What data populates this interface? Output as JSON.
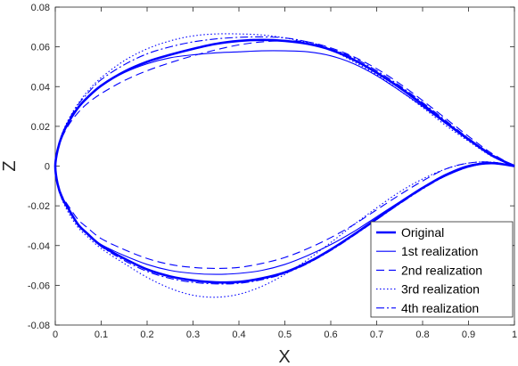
{
  "chart_data": {
    "type": "line",
    "title": "",
    "xlabel": "X",
    "ylabel": "Z",
    "xlim": [
      0,
      1
    ],
    "ylim": [
      -0.08,
      0.08
    ],
    "xticks": [
      "0",
      "0.1",
      "0.2",
      "0.3",
      "0.4",
      "0.5",
      "0.6",
      "0.7",
      "0.8",
      "0.9",
      "1"
    ],
    "yticks": [
      "-0.08",
      "-0.06",
      "-0.04",
      "-0.02",
      "0",
      "0.02",
      "0.04",
      "0.06",
      "0.08"
    ],
    "grid": false,
    "legend_position": "bottom-right",
    "series": [
      {
        "name": "Original",
        "color": "#0000ff",
        "style": "solid-thick",
        "x": [
          1.0,
          0.95,
          0.9,
          0.85,
          0.8,
          0.75,
          0.7,
          0.65,
          0.6,
          0.55,
          0.5,
          0.45,
          0.4,
          0.35,
          0.3,
          0.25,
          0.2,
          0.15,
          0.1,
          0.07,
          0.05,
          0.03,
          0.015,
          0.005,
          0.0,
          0.005,
          0.015,
          0.03,
          0.05,
          0.07,
          0.1,
          0.15,
          0.2,
          0.25,
          0.3,
          0.35,
          0.4,
          0.45,
          0.5,
          0.55,
          0.6,
          0.65,
          0.7,
          0.75,
          0.8,
          0.85,
          0.9,
          0.95,
          1.0
        ],
        "y": [
          0.0,
          0.0055,
          0.0135,
          0.022,
          0.031,
          0.0395,
          0.047,
          0.0535,
          0.0585,
          0.0615,
          0.063,
          0.0635,
          0.063,
          0.0615,
          0.059,
          0.056,
          0.0525,
          0.0475,
          0.0405,
          0.0345,
          0.0295,
          0.0225,
          0.0155,
          0.008,
          0.0,
          -0.009,
          -0.016,
          -0.022,
          -0.0295,
          -0.034,
          -0.04,
          -0.0465,
          -0.052,
          -0.0555,
          -0.0575,
          -0.0585,
          -0.0583,
          -0.0565,
          -0.0535,
          -0.0485,
          -0.042,
          -0.0345,
          -0.0265,
          -0.0185,
          -0.011,
          -0.0045,
          0.0,
          0.0015,
          0.0
        ]
      },
      {
        "name": "1st realization",
        "color": "#0000ff",
        "style": "solid",
        "x": [
          1.0,
          0.95,
          0.9,
          0.85,
          0.8,
          0.75,
          0.7,
          0.65,
          0.6,
          0.55,
          0.5,
          0.45,
          0.4,
          0.35,
          0.3,
          0.25,
          0.2,
          0.15,
          0.1,
          0.07,
          0.05,
          0.03,
          0.015,
          0.005,
          0.0,
          0.005,
          0.015,
          0.03,
          0.05,
          0.07,
          0.1,
          0.15,
          0.2,
          0.25,
          0.3,
          0.35,
          0.4,
          0.45,
          0.5,
          0.55,
          0.6,
          0.65,
          0.7,
          0.75,
          0.8,
          0.85,
          0.9,
          0.95,
          1.0
        ],
        "y": [
          0.0,
          0.0055,
          0.013,
          0.0215,
          0.03,
          0.038,
          0.0455,
          0.0515,
          0.0555,
          0.0575,
          0.058,
          0.058,
          0.0575,
          0.057,
          0.056,
          0.0545,
          0.0515,
          0.047,
          0.0405,
          0.0345,
          0.0295,
          0.0225,
          0.0155,
          0.008,
          0.0,
          -0.009,
          -0.016,
          -0.022,
          -0.0295,
          -0.034,
          -0.0395,
          -0.045,
          -0.0495,
          -0.0525,
          -0.054,
          -0.0545,
          -0.054,
          -0.0525,
          -0.0495,
          -0.045,
          -0.0395,
          -0.033,
          -0.0255,
          -0.018,
          -0.011,
          -0.005,
          -0.0005,
          0.0015,
          0.0
        ]
      },
      {
        "name": "2nd realization",
        "color": "#0000ff",
        "style": "dashed",
        "x": [
          1.0,
          0.95,
          0.9,
          0.85,
          0.8,
          0.75,
          0.7,
          0.65,
          0.6,
          0.55,
          0.5,
          0.45,
          0.4,
          0.35,
          0.3,
          0.25,
          0.2,
          0.15,
          0.1,
          0.07,
          0.05,
          0.03,
          0.015,
          0.005,
          0.0,
          0.005,
          0.015,
          0.03,
          0.05,
          0.07,
          0.1,
          0.15,
          0.2,
          0.25,
          0.3,
          0.35,
          0.4,
          0.45,
          0.5,
          0.55,
          0.6,
          0.65,
          0.7,
          0.75,
          0.8,
          0.85,
          0.9,
          0.95,
          1.0
        ],
        "y": [
          0.0,
          0.0065,
          0.015,
          0.024,
          0.033,
          0.0415,
          0.049,
          0.055,
          0.0595,
          0.0625,
          0.063,
          0.0625,
          0.061,
          0.0585,
          0.0555,
          0.052,
          0.048,
          0.043,
          0.0365,
          0.0315,
          0.027,
          0.021,
          0.0145,
          0.0075,
          0.0,
          -0.0085,
          -0.015,
          -0.0205,
          -0.027,
          -0.031,
          -0.0365,
          -0.042,
          -0.0465,
          -0.0495,
          -0.051,
          -0.0515,
          -0.051,
          -0.049,
          -0.046,
          -0.0415,
          -0.036,
          -0.0295,
          -0.022,
          -0.0145,
          -0.0075,
          -0.0015,
          0.0015,
          0.002,
          0.0
        ]
      },
      {
        "name": "3rd realization",
        "color": "#0000ff",
        "style": "dotted",
        "x": [
          1.0,
          0.95,
          0.9,
          0.85,
          0.8,
          0.75,
          0.7,
          0.65,
          0.6,
          0.55,
          0.5,
          0.45,
          0.4,
          0.35,
          0.3,
          0.25,
          0.2,
          0.15,
          0.1,
          0.07,
          0.05,
          0.03,
          0.015,
          0.005,
          0.0,
          0.005,
          0.015,
          0.03,
          0.05,
          0.07,
          0.1,
          0.15,
          0.2,
          0.25,
          0.3,
          0.35,
          0.4,
          0.45,
          0.5,
          0.55,
          0.6,
          0.65,
          0.7,
          0.75,
          0.8,
          0.85,
          0.9,
          0.95,
          1.0
        ],
        "y": [
          0.0,
          0.005,
          0.0125,
          0.0205,
          0.0295,
          0.038,
          0.046,
          0.0525,
          0.0585,
          0.062,
          0.0645,
          0.066,
          0.0665,
          0.0665,
          0.0655,
          0.063,
          0.059,
          0.053,
          0.0445,
          0.0375,
          0.0315,
          0.024,
          0.0165,
          0.0085,
          0.0,
          -0.0095,
          -0.017,
          -0.024,
          -0.031,
          -0.0355,
          -0.0415,
          -0.049,
          -0.056,
          -0.0615,
          -0.065,
          -0.066,
          -0.0645,
          -0.0605,
          -0.0545,
          -0.047,
          -0.0385,
          -0.0295,
          -0.021,
          -0.013,
          -0.0065,
          -0.0015,
          0.0015,
          0.002,
          0.0
        ]
      },
      {
        "name": "4th realization",
        "color": "#0000ff",
        "style": "dashdot",
        "x": [
          1.0,
          0.95,
          0.9,
          0.85,
          0.8,
          0.75,
          0.7,
          0.65,
          0.6,
          0.55,
          0.5,
          0.45,
          0.4,
          0.35,
          0.3,
          0.25,
          0.2,
          0.15,
          0.1,
          0.07,
          0.05,
          0.03,
          0.015,
          0.005,
          0.0,
          0.005,
          0.015,
          0.03,
          0.05,
          0.07,
          0.1,
          0.15,
          0.2,
          0.25,
          0.3,
          0.35,
          0.4,
          0.45,
          0.5,
          0.55,
          0.6,
          0.65,
          0.7,
          0.75,
          0.8,
          0.85,
          0.9,
          0.95,
          1.0
        ],
        "y": [
          0.0,
          0.006,
          0.014,
          0.023,
          0.032,
          0.0405,
          0.048,
          0.0545,
          0.059,
          0.0625,
          0.0645,
          0.065,
          0.0648,
          0.064,
          0.0625,
          0.06,
          0.0565,
          0.051,
          0.0435,
          0.0365,
          0.031,
          0.0235,
          0.016,
          0.0082,
          0.0,
          -0.0092,
          -0.0165,
          -0.0228,
          -0.03,
          -0.0345,
          -0.0405,
          -0.0475,
          -0.053,
          -0.0565,
          -0.0585,
          -0.0593,
          -0.059,
          -0.0572,
          -0.054,
          -0.049,
          -0.0425,
          -0.035,
          -0.027,
          -0.019,
          -0.0115,
          -0.005,
          -0.0005,
          0.0015,
          0.0
        ]
      }
    ]
  }
}
